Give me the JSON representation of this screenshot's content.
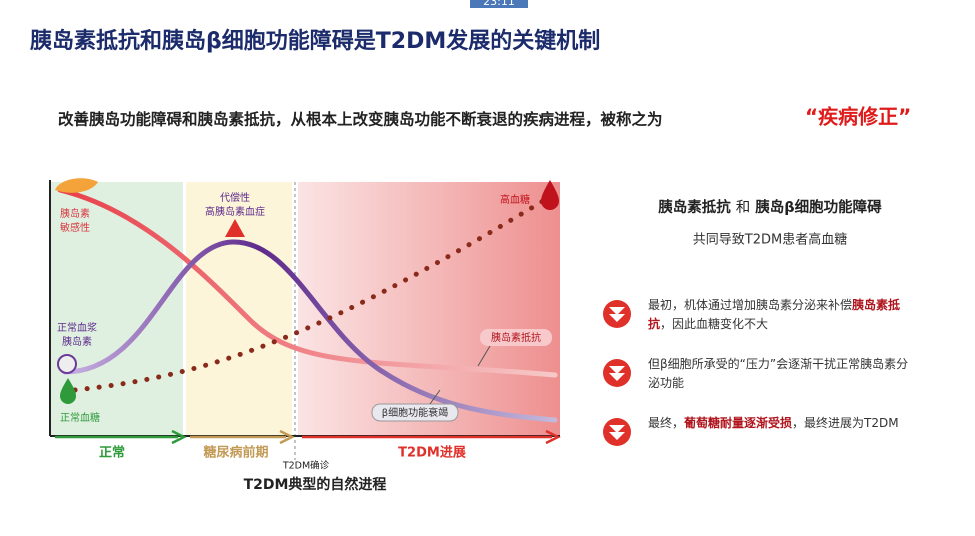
{
  "timestamp": "23:11",
  "title": "胰岛素抵抗和胰岛β细胞功能障碍是T2DM发展的关键机制",
  "subtitle": {
    "text": "改善胰岛功能障碍和胰岛素抵抗，从根本上改变胰岛功能不断衰退的疾病进程，被称之为",
    "highlight": "“疾病修正”"
  },
  "diagram": {
    "labels": {
      "sensitivity": [
        "胰岛素",
        "敏感性"
      ],
      "normal_insulin": [
        "正常血浆",
        "胰岛素"
      ],
      "normal_glucose": "正常血糖",
      "hyperinsulinemia": [
        "代偿性",
        "高胰岛素血症"
      ],
      "hyperglycemia": "高血糖",
      "resistance": "胰岛素抵抗",
      "failure": "β细胞功能衰竭"
    },
    "phases": [
      "正常",
      "糖尿病前期",
      "T2DM进展"
    ],
    "diagnosis": "T2DM确诊",
    "caption": "T2DM典型的自然进程"
  },
  "panel": {
    "heading": {
      "part1": "胰岛素抵抗",
      "connector": "和",
      "part2": "胰岛β细胞功能障碍"
    },
    "subheading": "共同导致T2DM患者高血糖",
    "items": [
      [
        {
          "text": "最初，机体通过增加胰岛素分泌来补偿"
        },
        {
          "text": "胰岛素抵抗",
          "bold": true
        },
        {
          "text": "，因此血糖变化不大"
        }
      ],
      [
        {
          "text": "但β细胞所承受的“压力”会逐渐干扰正常胰岛素分泌功能"
        }
      ],
      [
        {
          "text": "最终，"
        },
        {
          "text": "葡萄糖耐量逐渐受损",
          "bold": true
        },
        {
          "text": "，最终进展为T2DM"
        }
      ]
    ]
  }
}
